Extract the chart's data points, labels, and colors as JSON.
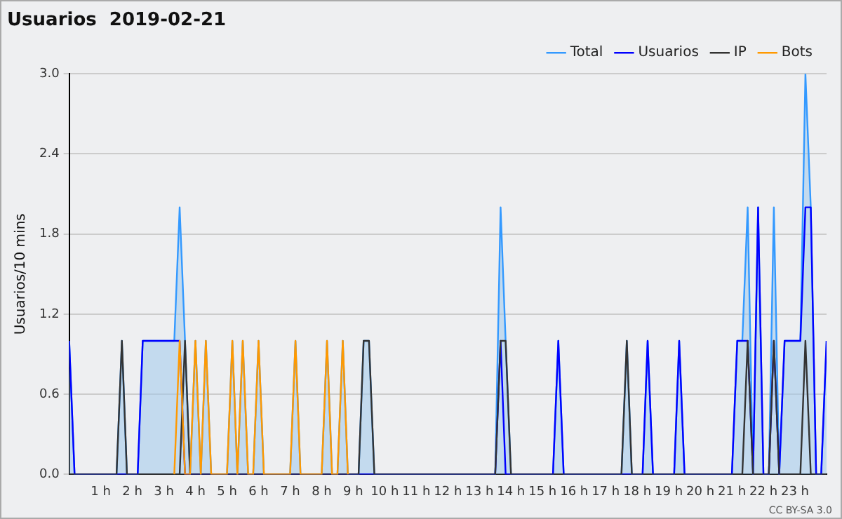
{
  "chart_data": {
    "type": "line",
    "title": "Usuarios  2019-02-21",
    "ylabel": "Usuarios/10 mins",
    "xlim": [
      0,
      24
    ],
    "xticks": [
      {
        "value": 1,
        "label": "1 h"
      },
      {
        "value": 2,
        "label": "2 h"
      },
      {
        "value": 3,
        "label": "3 h"
      },
      {
        "value": 4,
        "label": "4 h"
      },
      {
        "value": 5,
        "label": "5 h"
      },
      {
        "value": 6,
        "label": "6 h"
      },
      {
        "value": 7,
        "label": "7 h"
      },
      {
        "value": 8,
        "label": "8 h"
      },
      {
        "value": 9,
        "label": "9 h"
      },
      {
        "value": 10,
        "label": "10 h"
      },
      {
        "value": 11,
        "label": "11 h"
      },
      {
        "value": 12,
        "label": "12 h"
      },
      {
        "value": 13,
        "label": "13 h"
      },
      {
        "value": 14,
        "label": "14 h"
      },
      {
        "value": 15,
        "label": "15 h"
      },
      {
        "value": 16,
        "label": "16 h"
      },
      {
        "value": 17,
        "label": "17 h"
      },
      {
        "value": 18,
        "label": "18 h"
      },
      {
        "value": 19,
        "label": "19 h"
      },
      {
        "value": 20,
        "label": "20 h"
      },
      {
        "value": 21,
        "label": "21 h"
      },
      {
        "value": 22,
        "label": "22 h"
      },
      {
        "value": 23,
        "label": "23 h"
      }
    ],
    "ylim": [
      0,
      3
    ],
    "yticks": [
      {
        "value": 0,
        "label": "0.0"
      },
      {
        "value": 0.6,
        "label": "0.6"
      },
      {
        "value": 1.2,
        "label": "1.2"
      },
      {
        "value": 1.8,
        "label": "1.8"
      },
      {
        "value": 2.4,
        "label": "2.4"
      },
      {
        "value": 3,
        "label": "3.0"
      }
    ],
    "grid": "y",
    "legend": "top right",
    "marker": "none",
    "line_style": "solid",
    "annotations": [
      "CC BY-SA 3.0"
    ],
    "series": [
      {
        "name": "Total",
        "type": "area",
        "color": "#3399ff",
        "x": [
          0,
          0.17,
          1.5,
          1.67,
          1.83,
          2.17,
          2.33,
          3.33,
          3.5,
          3.67,
          3.83,
          4,
          4.17,
          4.33,
          4.5,
          5,
          5.17,
          5.33,
          5.5,
          5.67,
          5.83,
          6,
          6.17,
          7,
          7.17,
          7.33,
          8,
          8.17,
          8.33,
          8.5,
          8.67,
          8.83,
          9.17,
          9.33,
          9.5,
          9.67,
          13.5,
          13.67,
          13.83,
          14,
          15.33,
          15.5,
          15.67,
          17.5,
          17.67,
          17.83,
          18.17,
          18.33,
          18.5,
          19.17,
          19.33,
          19.5,
          21,
          21.17,
          21.33,
          21.5,
          21.67,
          21.83,
          22,
          22.17,
          22.33,
          22.5,
          22.67,
          23.17,
          23.33,
          23.5,
          23.67,
          23.83,
          24
        ],
        "values": [
          1,
          0,
          0,
          1,
          0,
          0,
          1,
          1,
          2,
          1,
          0,
          1,
          0,
          1,
          0,
          0,
          1,
          0,
          1,
          0,
          0,
          1,
          0,
          0,
          1,
          0,
          0,
          1,
          0,
          0,
          1,
          0,
          0,
          1,
          1,
          0,
          0,
          2,
          1,
          0,
          0,
          1,
          0,
          0,
          1,
          0,
          0,
          1,
          0,
          0,
          1,
          0,
          0,
          1,
          1,
          2,
          0,
          2,
          0,
          0,
          2,
          0,
          1,
          1,
          3,
          2,
          0,
          0,
          1
        ]
      },
      {
        "name": "Usuarios",
        "color": "#0000ff",
        "x": [
          0,
          0.17,
          2.17,
          2.33,
          3.5,
          3.67,
          13.5,
          13.67,
          13.83,
          15.33,
          15.5,
          15.67,
          18.17,
          18.33,
          18.5,
          19.17,
          19.33,
          19.5,
          21,
          21.17,
          21.5,
          21.67,
          21.83,
          22,
          22.17,
          22.33,
          22.5,
          22.67,
          23.17,
          23.33,
          23.5,
          23.67,
          23.83,
          24
        ],
        "values": [
          1,
          0,
          0,
          1,
          1,
          0,
          0,
          1,
          0,
          0,
          1,
          0,
          0,
          1,
          0,
          0,
          1,
          0,
          0,
          1,
          1,
          0,
          2,
          0,
          0,
          1,
          0,
          1,
          1,
          2,
          2,
          0,
          0,
          1
        ]
      },
      {
        "name": "IP",
        "color": "#333333",
        "x": [
          0,
          1.5,
          1.67,
          1.83,
          3.5,
          3.67,
          3.83,
          9.17,
          9.33,
          9.5,
          9.67,
          13.5,
          13.67,
          13.83,
          14,
          17.5,
          17.67,
          17.83,
          21.33,
          21.5,
          21.67,
          22.17,
          22.33,
          22.5,
          23.17,
          23.33,
          23.5,
          24
        ],
        "values": [
          0,
          0,
          1,
          0,
          0,
          1,
          0,
          0,
          1,
          1,
          0,
          0,
          1,
          1,
          0,
          0,
          1,
          0,
          0,
          1,
          0,
          0,
          1,
          0,
          0,
          1,
          0,
          0
        ]
      },
      {
        "name": "Bots",
        "color": "#ff9900",
        "x": [
          3.33,
          3.5,
          3.67,
          3.83,
          4,
          4.17,
          4.33,
          4.5,
          5,
          5.17,
          5.33,
          5.5,
          5.67,
          5.83,
          6,
          6.17,
          7,
          7.17,
          7.33,
          8,
          8.17,
          8.33,
          8.5,
          8.67,
          8.83
        ],
        "values": [
          0,
          1,
          0,
          0,
          1,
          0,
          1,
          0,
          0,
          1,
          0,
          1,
          0,
          0,
          1,
          0,
          0,
          1,
          0,
          0,
          1,
          0,
          0,
          1,
          0
        ]
      }
    ]
  }
}
